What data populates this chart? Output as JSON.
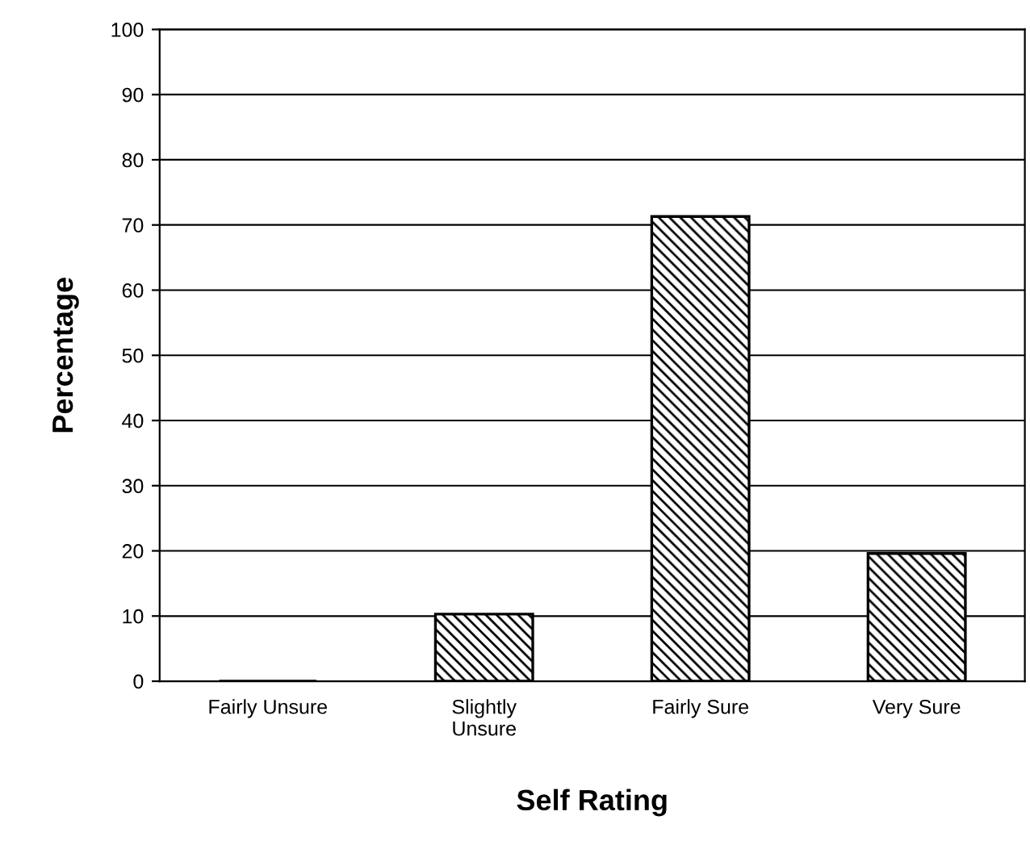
{
  "chart_data": {
    "type": "bar",
    "xlabel": "Self Rating",
    "ylabel": "Percentage",
    "categories": [
      "Fairly Unsure",
      "Slightly\nUnsure",
      "Fairly Sure",
      "Very Sure"
    ],
    "values": [
      0,
      10.3,
      71.3,
      19.6
    ],
    "color": "#000000",
    "ylim": [
      0,
      100
    ],
    "yticks": [
      0,
      10,
      20,
      30,
      40,
      50,
      60,
      70,
      80,
      90,
      100
    ],
    "grid": "y",
    "legend": false
  }
}
